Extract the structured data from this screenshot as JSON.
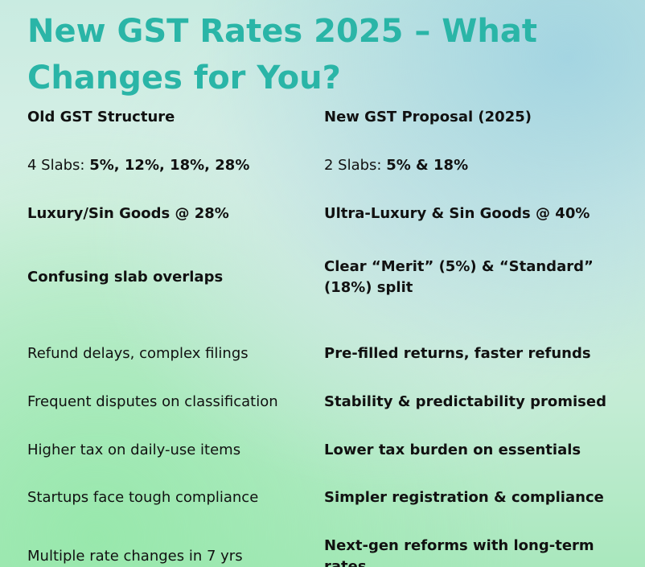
{
  "title": "New GST Rates 2025 – What Changes for You?",
  "table": {
    "header": {
      "old": "Old GST Structure",
      "new": "New GST Proposal (2025)"
    },
    "slabs": {
      "old_prefix": "4 Slabs: ",
      "old_rates": "5%, 12%, 18%, 28%",
      "new_prefix": "2 Slabs: ",
      "new_rates": "5% & 18%"
    },
    "rows": [
      {
        "old": "Luxury/Sin Goods @ 28%",
        "new": "Ultra-Luxury & Sin Goods @ 40%"
      },
      {
        "old": "Confusing slab overlaps",
        "new": "Clear “Merit” (5%) & “Standard” (18%) split"
      },
      {
        "old": "Refund delays, complex filings",
        "new": "Pre-filled returns, faster refunds"
      },
      {
        "old": "Frequent disputes on classification",
        "new": "Stability & predictability promised"
      },
      {
        "old": "Higher tax on daily-use items",
        "new": "Lower tax burden on essentials"
      },
      {
        "old": "Startups face tough compliance",
        "new": "Simpler registration & compliance"
      },
      {
        "old": "Multiple rate changes in 7 yrs",
        "new": "Next-gen reforms with long-term rates"
      }
    ]
  },
  "colors": {
    "title": "#2ab5a7",
    "text": "#111111"
  }
}
